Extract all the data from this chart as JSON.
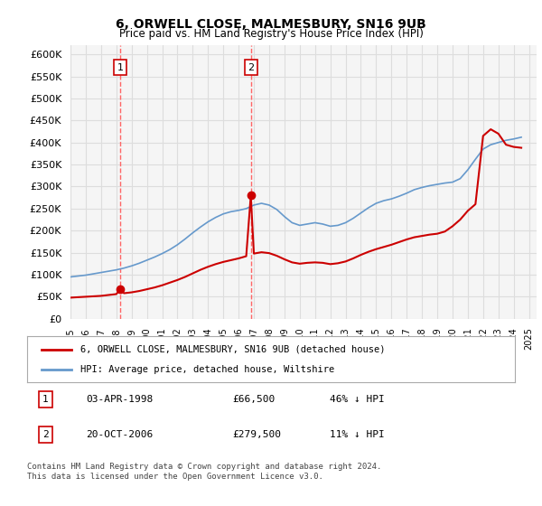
{
  "title": "6, ORWELL CLOSE, MALMESBURY, SN16 9UB",
  "subtitle": "Price paid vs. HM Land Registry's House Price Index (HPI)",
  "ylim": [
    0,
    620000
  ],
  "yticks": [
    0,
    50000,
    100000,
    150000,
    200000,
    250000,
    300000,
    350000,
    400000,
    450000,
    500000,
    550000,
    600000
  ],
  "xlim_start": 1995.0,
  "xlim_end": 2025.5,
  "sale1_x": 1998.25,
  "sale1_y": 66500,
  "sale1_label": "1",
  "sale1_date": "03-APR-1998",
  "sale1_price": "£66,500",
  "sale1_hpi": "46% ↓ HPI",
  "sale2_x": 2006.8,
  "sale2_y": 279500,
  "sale2_label": "2",
  "sale2_date": "20-OCT-2006",
  "sale2_price": "£279,500",
  "sale2_hpi": "11% ↓ HPI",
  "red_line_color": "#cc0000",
  "blue_line_color": "#6699cc",
  "vline_color": "#ff6666",
  "legend_label_red": "6, ORWELL CLOSE, MALMESBURY, SN16 9UB (detached house)",
  "legend_label_blue": "HPI: Average price, detached house, Wiltshire",
  "footer": "Contains HM Land Registry data © Crown copyright and database right 2024.\nThis data is licensed under the Open Government Licence v3.0.",
  "bg_color": "#ffffff",
  "plot_bg_color": "#f5f5f5",
  "grid_color": "#dddddd",
  "hpi_x": [
    1995,
    1995.5,
    1996,
    1996.5,
    1997,
    1997.5,
    1998,
    1998.5,
    1999,
    1999.5,
    2000,
    2000.5,
    2001,
    2001.5,
    2002,
    2002.5,
    2003,
    2003.5,
    2004,
    2004.5,
    2005,
    2005.5,
    2006,
    2006.5,
    2007,
    2007.5,
    2008,
    2008.5,
    2009,
    2009.5,
    2010,
    2010.5,
    2011,
    2011.5,
    2012,
    2012.5,
    2013,
    2013.5,
    2014,
    2014.5,
    2015,
    2015.5,
    2016,
    2016.5,
    2017,
    2017.5,
    2018,
    2018.5,
    2019,
    2019.5,
    2020,
    2020.5,
    2021,
    2021.5,
    2022,
    2022.5,
    2023,
    2023.5,
    2024,
    2024.5
  ],
  "hpi_y": [
    95000,
    97000,
    99000,
    102000,
    105000,
    108000,
    111000,
    115000,
    120000,
    126000,
    133000,
    140000,
    148000,
    157000,
    168000,
    181000,
    195000,
    208000,
    220000,
    230000,
    238000,
    243000,
    246000,
    250000,
    258000,
    262000,
    258000,
    248000,
    232000,
    218000,
    212000,
    215000,
    218000,
    215000,
    210000,
    212000,
    218000,
    228000,
    240000,
    252000,
    262000,
    268000,
    272000,
    278000,
    285000,
    293000,
    298000,
    302000,
    305000,
    308000,
    310000,
    318000,
    338000,
    362000,
    385000,
    395000,
    400000,
    405000,
    408000,
    412000
  ],
  "red_x": [
    1995,
    1995.5,
    1996,
    1996.5,
    1997,
    1997.5,
    1998,
    1998.25,
    1998.5,
    1999,
    1999.5,
    2000,
    2000.5,
    2001,
    2001.5,
    2002,
    2002.5,
    2003,
    2003.5,
    2004,
    2004.5,
    2005,
    2005.5,
    2006,
    2006.5,
    2006.8,
    2007,
    2007.5,
    2008,
    2008.5,
    2009,
    2009.5,
    2010,
    2010.5,
    2011,
    2011.5,
    2012,
    2012.5,
    2013,
    2013.5,
    2014,
    2014.5,
    2015,
    2015.5,
    2016,
    2016.5,
    2017,
    2017.5,
    2018,
    2018.5,
    2019,
    2019.5,
    2020,
    2020.5,
    2021,
    2021.5,
    2022,
    2022.5,
    2023,
    2023.5,
    2024,
    2024.5
  ],
  "red_y": [
    48000,
    49000,
    50000,
    51000,
    52000,
    54000,
    56000,
    66500,
    58000,
    60000,
    63000,
    67000,
    71000,
    76000,
    82000,
    88000,
    95000,
    103000,
    111000,
    118000,
    124000,
    129000,
    133000,
    137000,
    142000,
    279500,
    148000,
    151000,
    149000,
    143000,
    135000,
    128000,
    125000,
    127000,
    128000,
    127000,
    124000,
    126000,
    130000,
    137000,
    145000,
    152000,
    158000,
    163000,
    168000,
    174000,
    180000,
    185000,
    188000,
    191000,
    193000,
    198000,
    210000,
    225000,
    245000,
    260000,
    415000,
    430000,
    420000,
    395000,
    390000,
    388000
  ]
}
